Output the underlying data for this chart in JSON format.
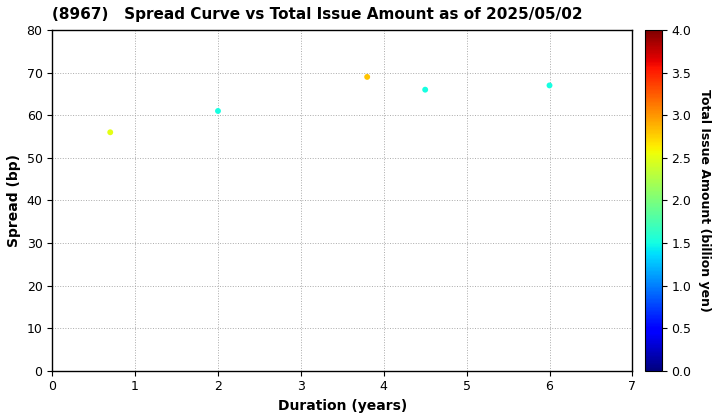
{
  "title": "(8967)   Spread Curve vs Total Issue Amount as of 2025/05/02",
  "xlabel": "Duration (years)",
  "ylabel": "Spread (bp)",
  "colorbar_label": "Total Issue Amount (billion yen)",
  "xlim": [
    0,
    7
  ],
  "ylim": [
    0,
    80
  ],
  "xticks": [
    0,
    1,
    2,
    3,
    4,
    5,
    6,
    7
  ],
  "yticks": [
    0,
    10,
    20,
    30,
    40,
    50,
    60,
    70,
    80
  ],
  "colorbar_range": [
    0.0,
    4.0
  ],
  "colorbar_ticks": [
    0.0,
    0.5,
    1.0,
    1.5,
    2.0,
    2.5,
    3.0,
    3.5,
    4.0
  ],
  "points": [
    {
      "duration": 0.7,
      "spread": 56,
      "amount": 2.5
    },
    {
      "duration": 2.0,
      "spread": 61,
      "amount": 1.5
    },
    {
      "duration": 3.8,
      "spread": 69,
      "amount": 2.8
    },
    {
      "duration": 4.5,
      "spread": 66,
      "amount": 1.5
    },
    {
      "duration": 6.0,
      "spread": 67,
      "amount": 1.5
    }
  ],
  "marker_size": 18,
  "grid_color": "#aaaaaa",
  "background_color": "#ffffff",
  "title_fontsize": 11,
  "axis_label_fontsize": 10,
  "tick_fontsize": 9,
  "colorbar_label_fontsize": 9
}
